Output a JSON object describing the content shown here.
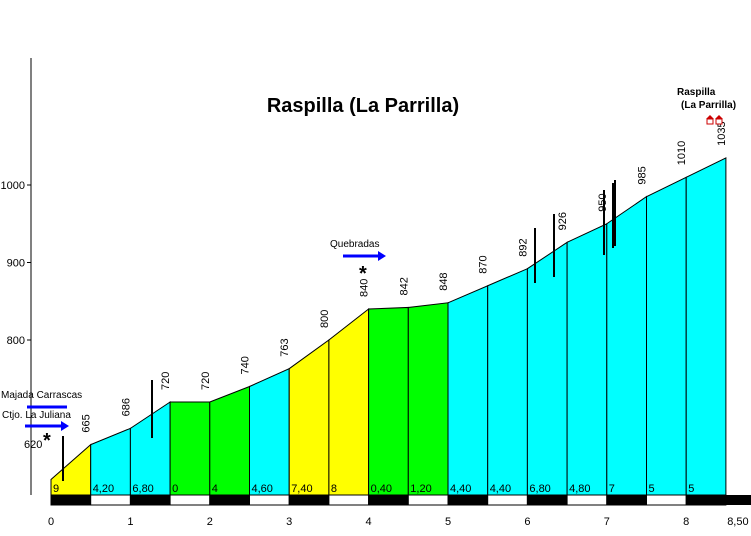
{
  "chart_data": {
    "type": "area",
    "title": "Raspilla (La Parrilla)",
    "xlabel": "",
    "ylabel": "",
    "xlim": [
      0,
      8.5
    ],
    "ylim": [
      600,
      1120
    ],
    "y_ticks": [
      "800",
      "900",
      "1000"
    ],
    "x_ticks": [
      "0",
      "1",
      "2",
      "3",
      "4",
      "5",
      "6",
      "7",
      "8",
      "8,50"
    ],
    "x": [
      0,
      0.5,
      1,
      1.5,
      2,
      2.5,
      3,
      3.5,
      4,
      4.5,
      5,
      5.5,
      6,
      6.5,
      7,
      7.5,
      8,
      8.5
    ],
    "altitudes": [
      620,
      665,
      686,
      720,
      720,
      740,
      763,
      800,
      840,
      842,
      848,
      870,
      892,
      926,
      950,
      985,
      1010,
      1035
    ],
    "altitude_labels": [
      "620",
      "665",
      "686",
      "720",
      "720",
      "740",
      "763",
      "800",
      "840",
      "842",
      "848",
      "870",
      "892",
      "926",
      "950",
      "985",
      "1010",
      "1035"
    ],
    "gradients": [
      "9",
      "4,20",
      "6,80",
      "0",
      "4",
      "4,60",
      "7,40",
      "8",
      "0,40",
      "1,20",
      "4,40",
      "4,40",
      "6,80",
      "4,80",
      "7",
      "5",
      "5"
    ],
    "colors": {
      "gentle": "#00ffff",
      "flat": "#00ff00",
      "steep": "#ffff00",
      "axis_bar": "#000000"
    },
    "segment_colors": [
      "yellow",
      "cyan",
      "cyan",
      "green",
      "green",
      "cyan",
      "yellow",
      "yellow",
      "green",
      "green",
      "cyan",
      "cyan",
      "cyan",
      "cyan",
      "cyan",
      "cyan",
      "cyan"
    ],
    "annotations": {
      "start_line1": "Majada Carrascas",
      "start_line2": "Ctjo. La Juliana",
      "mid": "Quebradas",
      "peak_line1": "Raspilla",
      "peak_line2": "(La Parrilla)",
      "star": "*"
    },
    "grid": false,
    "legend": "none"
  }
}
